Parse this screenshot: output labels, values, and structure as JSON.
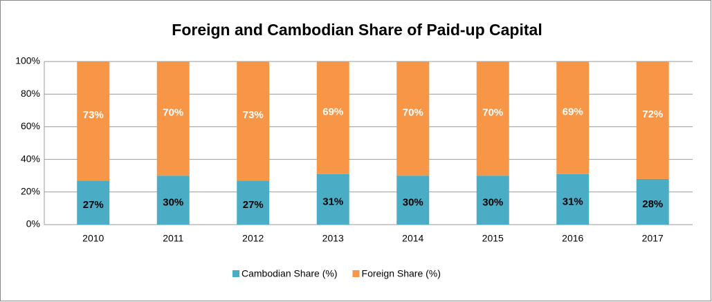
{
  "chart_data": {
    "type": "stacked_bar",
    "title": "Foreign and Cambodian Share of Paid-up Capital",
    "categories": [
      "2010",
      "2011",
      "2012",
      "2013",
      "2014",
      "2015",
      "2016",
      "2017"
    ],
    "series": [
      {
        "name": "Cambodian Share (%)",
        "color": "#4bacc6",
        "values": [
          27,
          30,
          27,
          31,
          30,
          30,
          31,
          28
        ],
        "value_labels": [
          "27%",
          "30%",
          "27%",
          "31%",
          "30%",
          "30%",
          "31%",
          "28%"
        ]
      },
      {
        "name": "Foreign Share (%)",
        "color": "#f79646",
        "values": [
          73,
          70,
          73,
          69,
          70,
          70,
          69,
          72
        ],
        "value_labels": [
          "73%",
          "70%",
          "73%",
          "69%",
          "70%",
          "70%",
          "69%",
          "72%"
        ]
      }
    ],
    "ylim": [
      0,
      100
    ],
    "yticks": [
      {
        "value": 0,
        "label": "0%"
      },
      {
        "value": 20,
        "label": "20%"
      },
      {
        "value": 40,
        "label": "40%"
      },
      {
        "value": 60,
        "label": "60%"
      },
      {
        "value": 80,
        "label": "80%"
      },
      {
        "value": 100,
        "label": "100%"
      }
    ],
    "grid": true,
    "legend": "bottom"
  }
}
